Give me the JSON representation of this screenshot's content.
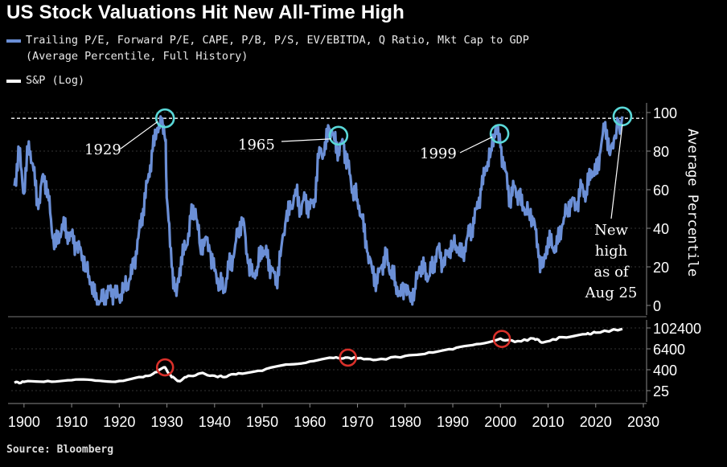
{
  "title": "US Stock Valuations Hit New All-Time High",
  "legend": {
    "blue_line1": "Trailing P/E, Forward P/E, CAPE, P/B, P/S, EV/EBITDA, Q Ratio, Mkt Cap to GDP",
    "blue_line2": "(Average Percentile, Full History)",
    "white": "S&P (Log)"
  },
  "source": "Source: Bloomberg",
  "colors": {
    "valuation": "#6b8fd6",
    "sp": "#ffffff",
    "peak_circle": "#5ad8d8",
    "sp_circle": "#d9302a"
  },
  "annotations": {
    "y1929": "1929",
    "y1965": "1965",
    "y1999": "1999",
    "new_high": [
      "New",
      "high",
      "as of",
      "Aug 25"
    ]
  },
  "chart_data": [
    {
      "type": "line",
      "title": "US Stock Valuations Hit New All-Time High",
      "ylabel": "Average Percentile",
      "ylim": [
        0,
        100
      ],
      "yticks": [
        0,
        20,
        40,
        60,
        80,
        100
      ],
      "xlim": [
        1898,
        2030
      ],
      "xticks": [
        1900,
        1910,
        1920,
        1930,
        1940,
        1950,
        1960,
        1970,
        1980,
        1990,
        2000,
        2010,
        2020,
        2030
      ],
      "reference_line": 97,
      "series": [
        {
          "name": "Trailing P/E, Forward P/E, CAPE, P/B, P/S, EV/EBITDA, Q Ratio, Mkt Cap to GDP (Average Percentile, Full History)",
          "x": [
            1898,
            1899,
            1900,
            1901,
            1902,
            1903,
            1904,
            1905,
            1906,
            1907,
            1908,
            1909,
            1910,
            1911,
            1912,
            1913,
            1914,
            1915,
            1916,
            1917,
            1918,
            1919,
            1920,
            1921,
            1922,
            1923,
            1924,
            1925,
            1926,
            1927,
            1928,
            1929,
            1929.7,
            1930,
            1931,
            1932,
            1933,
            1934,
            1935,
            1936,
            1937,
            1938,
            1939,
            1940,
            1941,
            1942,
            1943,
            1944,
            1945,
            1946,
            1947,
            1948,
            1949,
            1950,
            1951,
            1952,
            1953,
            1954,
            1955,
            1956,
            1957,
            1958,
            1959,
            1960,
            1961,
            1962,
            1963,
            1964,
            1965,
            1966,
            1967,
            1968,
            1969,
            1970,
            1971,
            1972,
            1973,
            1974,
            1975,
            1976,
            1977,
            1978,
            1979,
            1980,
            1981,
            1982,
            1983,
            1984,
            1985,
            1986,
            1987,
            1988,
            1989,
            1990,
            1991,
            1992,
            1993,
            1994,
            1995,
            1996,
            1997,
            1998,
            1999,
            2000,
            2001,
            2002,
            2003,
            2004,
            2005,
            2006,
            2007,
            2008,
            2009,
            2010,
            2011,
            2012,
            2013,
            2014,
            2015,
            2016,
            2017,
            2018,
            2019,
            2020,
            2021,
            2022,
            2023,
            2024,
            2025.6
          ],
          "values": [
            62,
            80,
            58,
            85,
            70,
            50,
            68,
            60,
            35,
            32,
            42,
            38,
            36,
            30,
            28,
            20,
            12,
            3,
            2,
            5,
            8,
            6,
            4,
            10,
            12,
            20,
            35,
            50,
            65,
            80,
            92,
            97,
            85,
            55,
            20,
            5,
            25,
            30,
            45,
            50,
            30,
            35,
            28,
            18,
            12,
            8,
            20,
            25,
            40,
            45,
            22,
            15,
            20,
            30,
            25,
            18,
            12,
            30,
            45,
            50,
            60,
            50,
            55,
            50,
            55,
            82,
            78,
            92,
            88,
            80,
            84,
            72,
            60,
            55,
            45,
            28,
            20,
            12,
            20,
            25,
            18,
            12,
            5,
            10,
            4,
            8,
            20,
            18,
            15,
            22,
            30,
            20,
            28,
            32,
            30,
            25,
            35,
            40,
            50,
            60,
            72,
            80,
            93,
            82,
            70,
            55,
            62,
            55,
            50,
            48,
            45,
            25,
            20,
            35,
            30,
            32,
            42,
            50,
            55,
            50,
            62,
            58,
            70,
            68,
            80,
            95,
            78,
            88,
            98
          ]
        }
      ]
    },
    {
      "type": "line",
      "ylabel": "",
      "yscale": "log",
      "yticks": [
        25,
        400,
        6400,
        102400
      ],
      "xlim": [
        1898,
        2030
      ],
      "series": [
        {
          "name": "S&P (Log)",
          "x": [
            1898,
            1900,
            1905,
            1910,
            1915,
            1920,
            1925,
            1928,
            1929.6,
            1931,
            1932.5,
            1934,
            1937,
            1940,
            1942,
            1945,
            1950,
            1955,
            1960,
            1965,
            1968,
            1970,
            1974,
            1980,
            1985,
            1990,
            1995,
            2000,
            2003,
            2007,
            2009,
            2013,
            2018,
            2020,
            2025.6
          ],
          "values": [
            70,
            80,
            90,
            100,
            95,
            90,
            150,
            300,
            550,
            150,
            90,
            150,
            250,
            180,
            150,
            250,
            350,
            800,
            1200,
            1900,
            2000,
            1800,
            1500,
            2500,
            4000,
            6000,
            12000,
            25000,
            16000,
            25000,
            15000,
            30000,
            45000,
            55000,
            90000
          ]
        }
      ]
    }
  ]
}
